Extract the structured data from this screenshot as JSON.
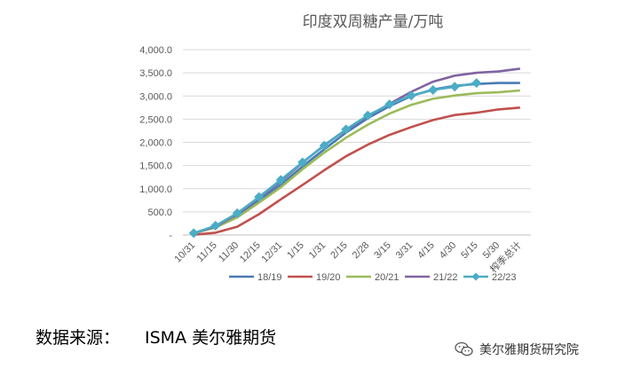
{
  "chart_data": {
    "type": "line",
    "title": "印度双周糖产量/万吨",
    "xlabel": "",
    "ylabel": "",
    "categories": [
      "10/31",
      "11/15",
      "11/30",
      "12/15",
      "12/31",
      "1/15",
      "1/31",
      "2/15",
      "2/28",
      "3/15",
      "3/31",
      "4/15",
      "4/30",
      "5/15",
      "5/30",
      "榨季总计"
    ],
    "ylim": [
      0,
      4000
    ],
    "yticks": [
      0,
      500,
      1000,
      1500,
      2000,
      2500,
      3000,
      3500,
      4000
    ],
    "ytick_labels": [
      "-",
      "500.0",
      "1,000.0",
      "1,500.0",
      "2,000.0",
      "2,500.0",
      "3,000.0",
      "3,500.0",
      "4,000.0"
    ],
    "grid": true,
    "legend_position": "bottom",
    "series": [
      {
        "name": "18/19",
        "color": "#4a7ab5",
        "marker": "none",
        "values": [
          40,
          170,
          420,
          740,
          1090,
          1480,
          1850,
          2210,
          2520,
          2780,
          3000,
          3140,
          3220,
          3260,
          3280,
          3280
        ]
      },
      {
        "name": "19/20",
        "color": "#c0504d",
        "marker": "none",
        "values": [
          5,
          50,
          180,
          450,
          770,
          1080,
          1400,
          1700,
          1950,
          2160,
          2330,
          2480,
          2590,
          2640,
          2710,
          2750
        ]
      },
      {
        "name": "20/21",
        "color": "#9bbb59",
        "marker": "none",
        "values": [
          40,
          160,
          380,
          700,
          1030,
          1420,
          1780,
          2100,
          2380,
          2620,
          2810,
          2940,
          3010,
          3060,
          3080,
          3120
        ]
      },
      {
        "name": "21/22",
        "color": "#8064a2",
        "marker": "none",
        "values": [
          40,
          180,
          450,
          790,
          1160,
          1560,
          1940,
          2270,
          2560,
          2830,
          3090,
          3310,
          3440,
          3500,
          3530,
          3590
        ]
      },
      {
        "name": "22/23",
        "color": "#4bacc6",
        "marker": "diamond",
        "values": [
          40,
          200,
          470,
          820,
          1190,
          1570,
          1930,
          2280,
          2580,
          2820,
          3010,
          3130,
          3200,
          3280,
          null,
          null
        ]
      }
    ]
  },
  "footer": {
    "source_label": "数据来源：",
    "source_value": "ISMA 美尔雅期货",
    "watermark": "美尔雅期货研究院",
    "watermark_icon": "wechat-icon"
  }
}
